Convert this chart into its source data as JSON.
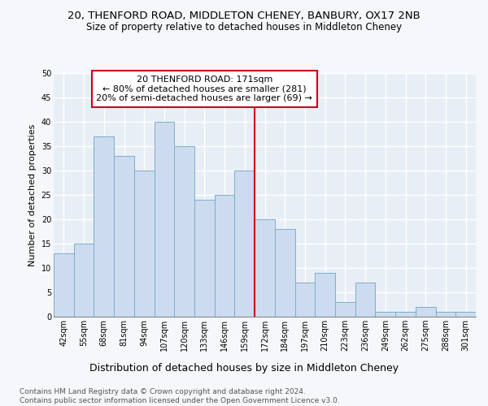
{
  "title_line1": "20, THENFORD ROAD, MIDDLETON CHENEY, BANBURY, OX17 2NB",
  "title_line2": "Size of property relative to detached houses in Middleton Cheney",
  "xlabel": "Distribution of detached houses by size in Middleton Cheney",
  "ylabel": "Number of detached properties",
  "categories": [
    "42sqm",
    "55sqm",
    "68sqm",
    "81sqm",
    "94sqm",
    "107sqm",
    "120sqm",
    "133sqm",
    "146sqm",
    "159sqm",
    "172sqm",
    "184sqm",
    "197sqm",
    "210sqm",
    "223sqm",
    "236sqm",
    "249sqm",
    "262sqm",
    "275sqm",
    "288sqm",
    "301sqm"
  ],
  "values": [
    13,
    15,
    37,
    33,
    30,
    40,
    35,
    24,
    25,
    30,
    20,
    18,
    7,
    9,
    3,
    7,
    1,
    1,
    2,
    1,
    1
  ],
  "bar_color": "#ccdcee",
  "bar_edge_color": "#7aadce",
  "vline_index": 10,
  "vline_color": "#cc0020",
  "annotation_text": "20 THENFORD ROAD: 171sqm\n← 80% of detached houses are smaller (281)\n20% of semi-detached houses are larger (69) →",
  "annotation_box_facecolor": "#ffffff",
  "annotation_box_edgecolor": "#cc0020",
  "ylim": [
    0,
    50
  ],
  "yticks": [
    0,
    5,
    10,
    15,
    20,
    25,
    30,
    35,
    40,
    45,
    50
  ],
  "plot_bg_color": "#e8eef5",
  "fig_bg_color": "#f5f7fa",
  "grid_color": "#ffffff",
  "footer_text": "Contains HM Land Registry data © Crown copyright and database right 2024.\nContains public sector information licensed under the Open Government Licence v3.0.",
  "title_fontsize": 9.5,
  "subtitle_fontsize": 8.5,
  "xlabel_fontsize": 9,
  "ylabel_fontsize": 8,
  "tick_fontsize": 7,
  "footer_fontsize": 6.5,
  "annot_fontsize": 8
}
